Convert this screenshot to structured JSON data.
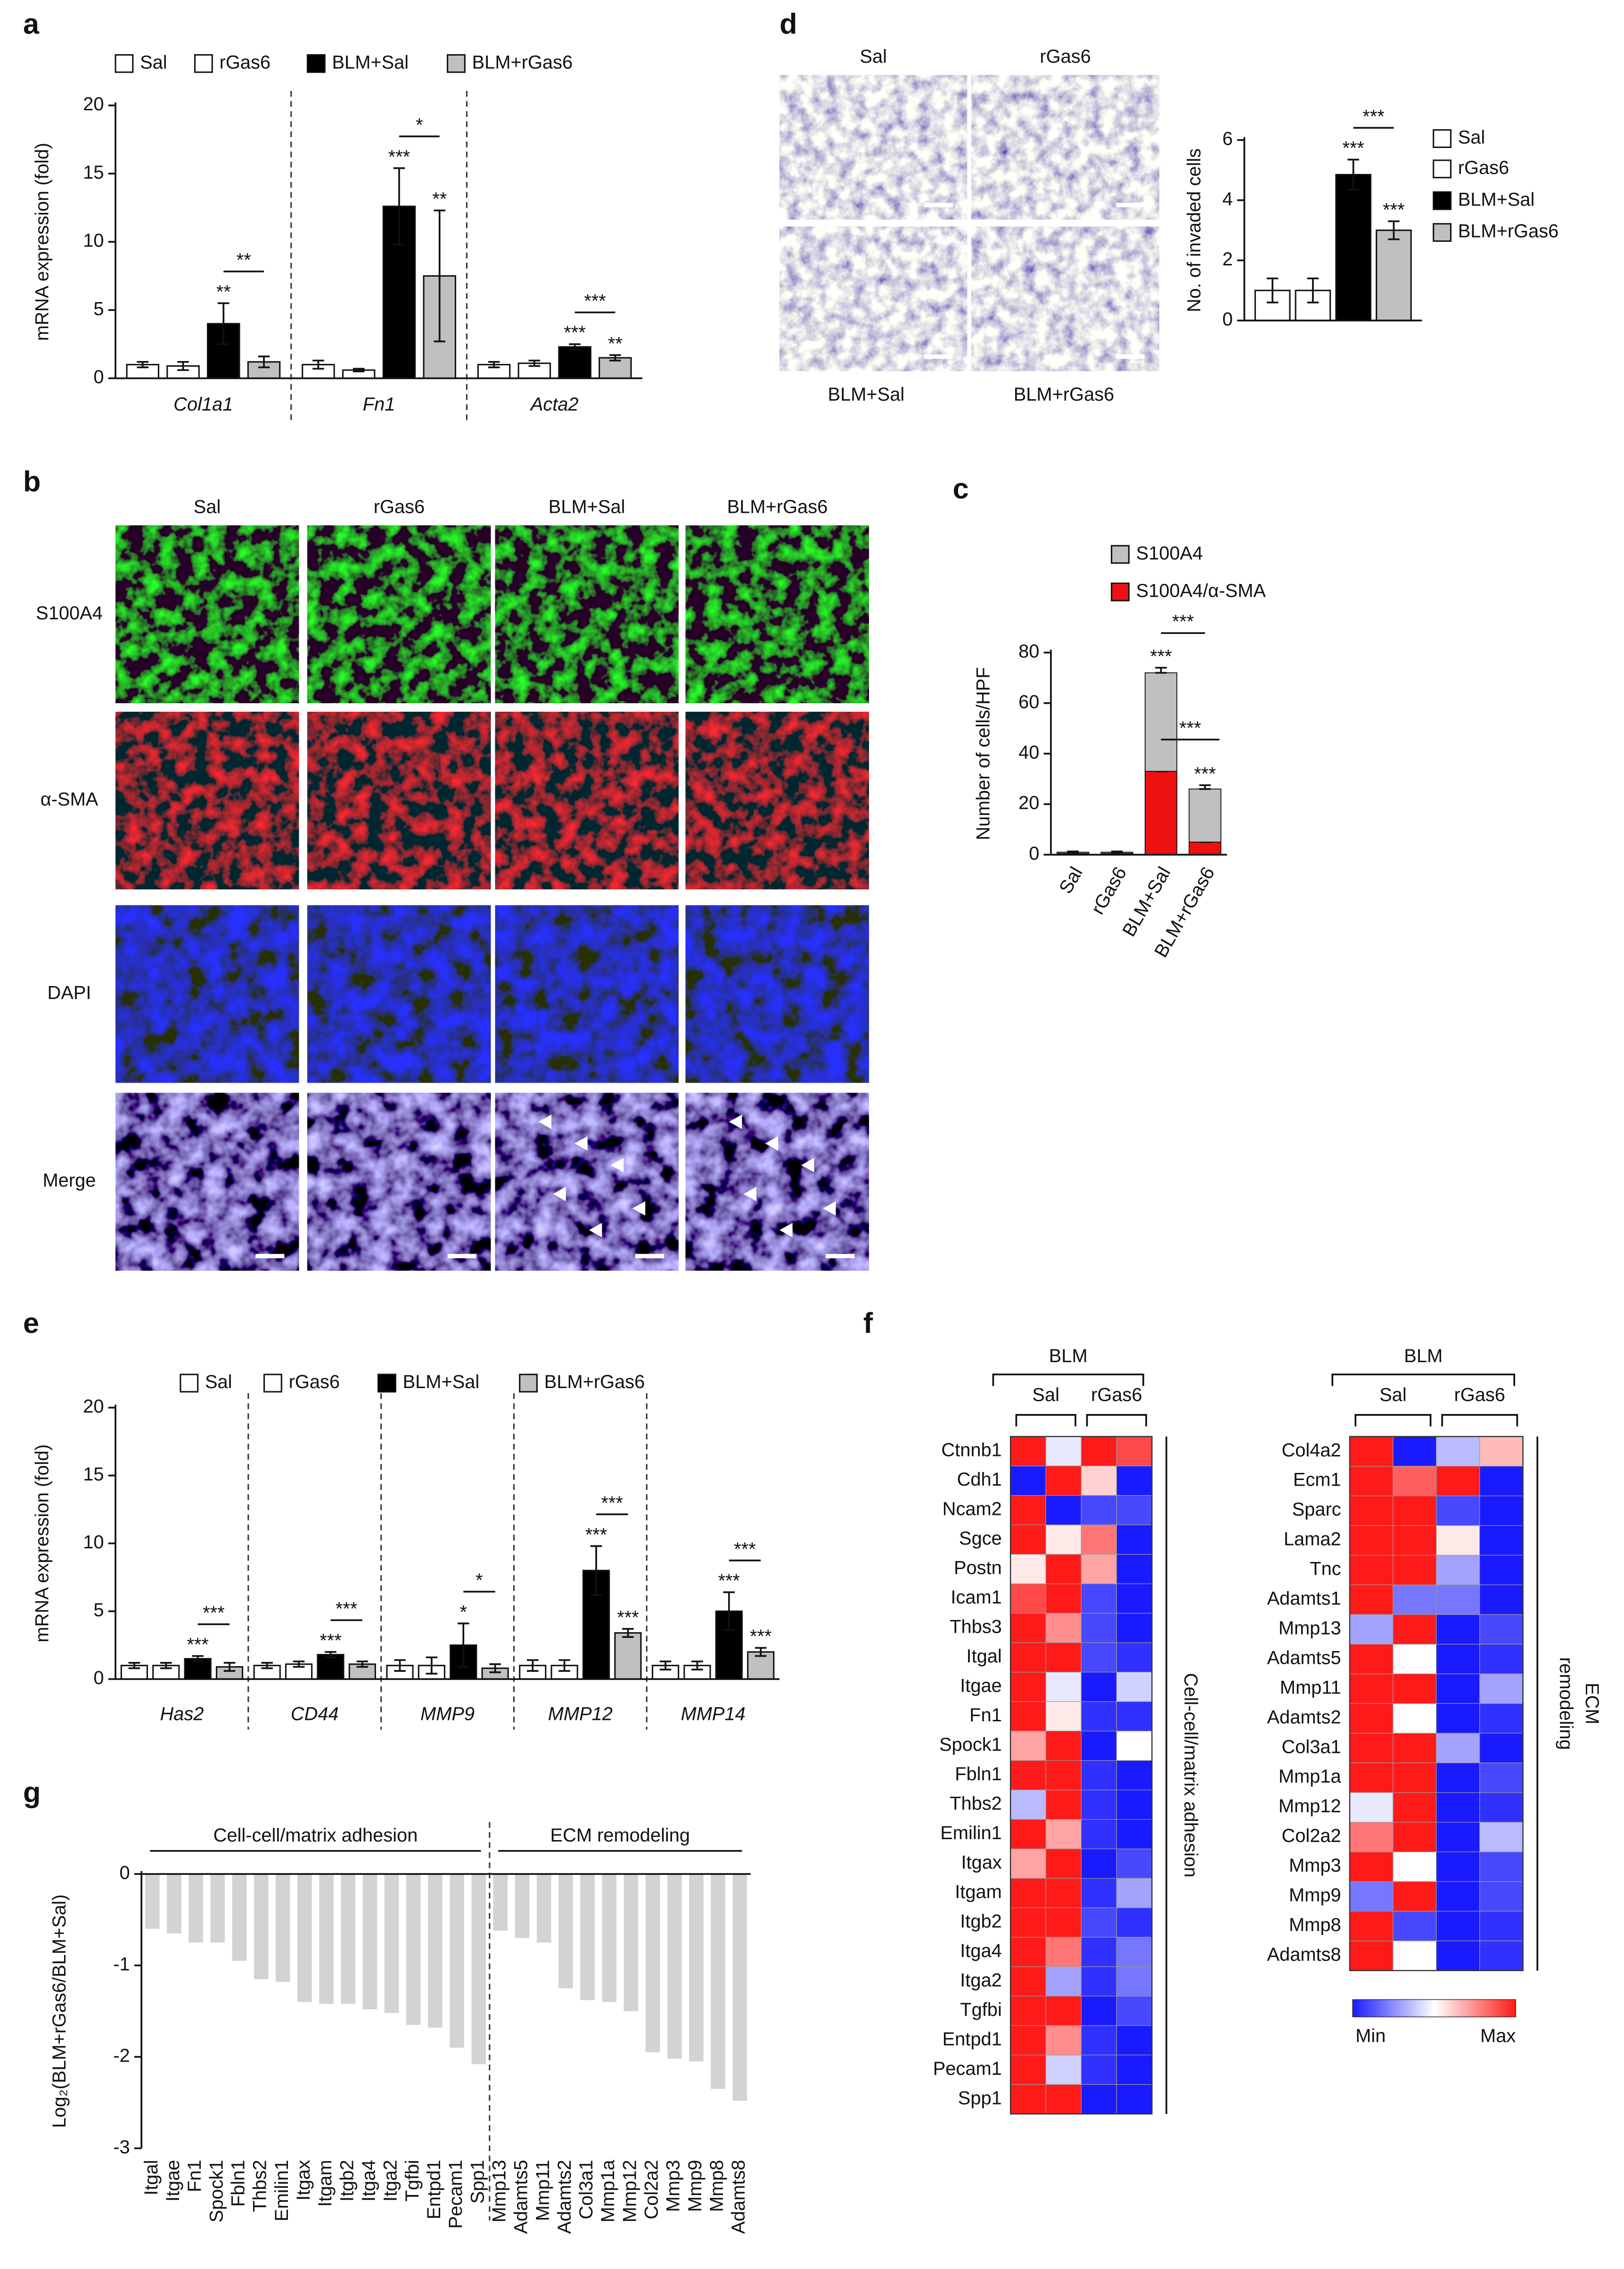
{
  "chart_data": [
    {
      "panel": "a",
      "type": "bar",
      "ylabel": "mRNA expression (fold)",
      "categories": [
        "Col1a1",
        "Fn1",
        "Acta2"
      ],
      "ylim": [
        0,
        20
      ],
      "yticks": [
        0,
        5,
        10,
        15,
        20
      ],
      "series": [
        {
          "name": "Sal",
          "color": "#ffffff",
          "values": [
            1.0,
            1.0,
            1.0
          ],
          "errors": [
            0.2,
            0.3,
            0.2
          ]
        },
        {
          "name": "rGas6",
          "color": "#ffffff",
          "values": [
            0.9,
            0.6,
            1.1
          ],
          "errors": [
            0.3,
            0.1,
            0.2
          ]
        },
        {
          "name": "BLM+Sal",
          "color": "#000000",
          "values": [
            4.0,
            12.6,
            2.3
          ],
          "errors": [
            1.5,
            2.8,
            0.2
          ],
          "stars": [
            "**",
            "***",
            "***"
          ]
        },
        {
          "name": "BLM+rGas6",
          "color": "#c0c0c0",
          "values": [
            1.2,
            7.5,
            1.5
          ],
          "errors": [
            0.4,
            4.8,
            0.2
          ],
          "stars": [
            null,
            "**",
            "**"
          ]
        }
      ],
      "comparisons": [
        "**",
        "*",
        "***"
      ]
    },
    {
      "panel": "b",
      "type": "micrograph",
      "columns": [
        "Sal",
        "rGas6",
        "BLM+Sal",
        "BLM+rGas6"
      ],
      "rows": [
        "S100A4",
        "α-SMA",
        "DAPI",
        "Merge"
      ]
    },
    {
      "panel": "c",
      "type": "stacked",
      "ylabel": "Number of cells/HPF",
      "categories": [
        "Sal",
        "rGas6",
        "BLM+Sal",
        "BLM+rGas6"
      ],
      "ylim": [
        0,
        80
      ],
      "yticks": [
        0,
        20,
        40,
        60,
        80
      ],
      "series": [
        {
          "name": "S100A4",
          "color": "#c0c0c0",
          "values": [
            0.5,
            0.5,
            39,
            21
          ],
          "errors": [
            0.3,
            0.3,
            2,
            1.5
          ],
          "stars": [
            null,
            null,
            "***",
            "***"
          ]
        },
        {
          "name": "S100A4/α-SMA",
          "color": "#ee1111",
          "values": [
            0.5,
            0.5,
            33,
            5
          ],
          "errors": [
            0.3,
            0.3,
            1,
            1.5
          ],
          "stars": [
            null,
            null,
            "***",
            "***"
          ]
        }
      ],
      "comparisons": [
        "***",
        "***"
      ]
    },
    {
      "panel": "d",
      "type": "image",
      "labels": [
        "Sal",
        "rGas6",
        "BLM+Sal",
        "BLM+rGas6"
      ]
    },
    {
      "type": "bar",
      "ylabel": "No. of invaded cells",
      "categories": [
        null
      ],
      "ylim": [
        0,
        6
      ],
      "yticks": [
        0,
        2,
        4,
        6
      ],
      "series": [
        {
          "name": "Sal",
          "color": "#ffffff",
          "values": [
            1.0
          ],
          "errors": [
            0.4
          ]
        },
        {
          "name": "rGas6",
          "color": "#ffffff",
          "values": [
            1.0
          ],
          "errors": [
            0.4
          ]
        },
        {
          "name": "BLM+Sal",
          "color": "#000000",
          "values": [
            4.85
          ],
          "errors": [
            0.5
          ],
          "stars": [
            "***"
          ]
        },
        {
          "name": "BLM+rGas6",
          "color": "#c0c0c0",
          "values": [
            3.0
          ],
          "errors": [
            0.3
          ],
          "stars": [
            "***"
          ]
        }
      ],
      "comparisons": [
        "***"
      ]
    },
    {
      "panel": "e",
      "type": "bar",
      "ylabel": "mRNA expression (fold)",
      "categories": [
        "Has2",
        "CD44",
        "MMP9",
        "MMP12",
        "MMP14"
      ],
      "ylim": [
        0,
        20
      ],
      "yticks": [
        0,
        5,
        10,
        15,
        20
      ],
      "series": [
        {
          "name": "Sal",
          "color": "#ffffff",
          "values": [
            1.0,
            1.0,
            1.0,
            1.0,
            1.0
          ],
          "errors": [
            0.2,
            0.2,
            0.4,
            0.4,
            0.3
          ]
        },
        {
          "name": "rGas6",
          "color": "#ffffff",
          "values": [
            1.0,
            1.1,
            1.0,
            1.0,
            1.0
          ],
          "errors": [
            0.2,
            0.2,
            0.6,
            0.4,
            0.3
          ]
        },
        {
          "name": "BLM+Sal",
          "color": "#000000",
          "values": [
            1.5,
            1.8,
            2.5,
            8.0,
            5.0
          ],
          "errors": [
            0.2,
            0.2,
            1.6,
            1.8,
            1.4
          ],
          "stars": [
            "***",
            "***",
            "*",
            "***",
            "***"
          ]
        },
        {
          "name": "BLM+rGas6",
          "color": "#c0c0c0",
          "values": [
            0.9,
            1.1,
            0.8,
            3.4,
            2.0
          ],
          "errors": [
            0.3,
            0.2,
            0.3,
            0.3,
            0.3
          ],
          "stars": [
            null,
            null,
            null,
            "***",
            "***"
          ]
        }
      ],
      "comparisons": [
        "***",
        "***",
        "*",
        "***",
        "***"
      ]
    },
    {
      "panel": "f",
      "type": "heatmap",
      "header": "BLM",
      "groups": [
        "Sal",
        "rGas6"
      ],
      "rows": [
        "Ctnnb1",
        "Cdh1",
        "Ncam2",
        "Sgce",
        "Postn",
        "Icam1",
        "Thbs3",
        "Itgal",
        "Itgae",
        "Fn1",
        "Spock1",
        "Fbln1",
        "Thbs2",
        "Emilin1",
        "Itgax",
        "Itgam",
        "Itgb2",
        "Itga4",
        "Itga2",
        "Tgfbi",
        "Entpd1",
        "Pecam1",
        "Spp1"
      ],
      "values": [
        [
          1,
          0.45,
          1,
          0.9
        ],
        [
          0,
          1,
          0.6,
          0
        ],
        [
          1,
          0,
          0.1,
          0.1
        ],
        [
          1,
          0.55,
          0.8,
          0
        ],
        [
          0.55,
          1,
          0.7,
          0
        ],
        [
          0.9,
          1,
          0.1,
          0
        ],
        [
          1,
          0.75,
          0.1,
          0
        ],
        [
          1,
          1,
          0.1,
          0.05
        ],
        [
          1,
          0.45,
          0,
          0.4
        ],
        [
          1,
          0.55,
          0.05,
          0.05
        ],
        [
          0.7,
          1,
          0,
          0.5
        ],
        [
          1,
          1,
          0.05,
          0
        ],
        [
          0.35,
          1,
          0.05,
          0
        ],
        [
          1,
          0.7,
          0.05,
          0
        ],
        [
          0.7,
          1,
          0,
          0.1
        ],
        [
          1,
          1,
          0.05,
          0.3
        ],
        [
          1,
          1,
          0.1,
          0.05
        ],
        [
          1,
          0.8,
          0.05,
          0.2
        ],
        [
          1,
          0.3,
          0.05,
          0.2
        ],
        [
          1,
          1,
          0,
          0.1
        ],
        [
          1,
          0.75,
          0.05,
          0
        ],
        [
          1,
          0.4,
          0.05,
          0
        ],
        [
          1,
          1,
          0,
          0
        ]
      ],
      "side_label": [
        "Cell-cell/matrix adhesion"
      ]
    },
    {
      "type": "heatmap",
      "header": "BLM",
      "groups": [
        "Sal",
        "rGas6"
      ],
      "rows": [
        "Col4a2",
        "Ecm1",
        "Sparc",
        "Lama2",
        "Tnc",
        "Adamts1",
        "Mmp13",
        "Adamts5",
        "Mmp11",
        "Adamts2",
        "Col3a1",
        "Mmp1a",
        "Mmp12",
        "Col2a2",
        "Mmp3",
        "Mmp9",
        "Mmp8",
        "Adamts8"
      ],
      "values": [
        [
          1,
          0,
          0.35,
          0.65
        ],
        [
          1,
          0.85,
          1,
          0
        ],
        [
          1,
          1,
          0.1,
          0
        ],
        [
          1,
          1,
          0.55,
          0
        ],
        [
          1,
          1,
          0.3,
          0
        ],
        [
          1,
          0.2,
          0.2,
          0
        ],
        [
          0.3,
          1,
          0,
          0.1
        ],
        [
          1,
          0.5,
          0,
          0.05
        ],
        [
          1,
          1,
          0,
          0.3
        ],
        [
          1,
          0.5,
          0,
          0.05
        ],
        [
          1,
          1,
          0.3,
          0
        ],
        [
          1,
          1,
          0,
          0.1
        ],
        [
          0.45,
          1,
          0,
          0.05
        ],
        [
          0.8,
          1,
          0,
          0.35
        ],
        [
          1,
          0.5,
          0,
          0.1
        ],
        [
          0.2,
          1,
          0,
          0.1
        ],
        [
          1,
          0.1,
          0,
          0.05
        ],
        [
          1,
          0.5,
          0,
          0.05
        ]
      ],
      "side_label": [
        "ECM",
        "remodeling"
      ],
      "colorbar_labels": [
        "Min",
        "Max"
      ]
    },
    {
      "panel": "g",
      "type": "bar",
      "ylabel": "Log₂(BLM+rGas6/BLM+Sal)",
      "groups": [
        "Cell-cell/matrix adhesion",
        "ECM remodeling"
      ],
      "categories": [
        "Itgal",
        "Itgae",
        "Fn1",
        "Spock1",
        "Fbln1",
        "Thbs2",
        "Emilin1",
        "Itgax",
        "Itgam",
        "Itgb2",
        "Itga4",
        "Itga2",
        "Tgfbi",
        "Entpd1",
        "Pecam1",
        "Spp1",
        "Mmp13",
        "Adamts5",
        "Mmp11",
        "Adamts2",
        "Col3a1",
        "Mmp1a",
        "Mmp12",
        "Col2a2",
        "Mmp3",
        "Mmp9",
        "Mmp8",
        "Adamts8"
      ],
      "values": [
        -0.6,
        -0.65,
        -0.75,
        -0.75,
        -0.95,
        -1.15,
        -1.18,
        -1.4,
        -1.42,
        -1.42,
        -1.48,
        -1.52,
        -1.65,
        -1.68,
        -1.9,
        -2.08,
        -0.62,
        -0.7,
        -0.75,
        -1.25,
        -1.38,
        -1.4,
        -1.5,
        -1.95,
        -2.02,
        -2.05,
        -2.35,
        -2.48
      ],
      "color": "#d3d3d3",
      "ylim": [
        -3,
        0
      ],
      "yticks": [
        0,
        -1,
        -2,
        -3
      ]
    }
  ]
}
